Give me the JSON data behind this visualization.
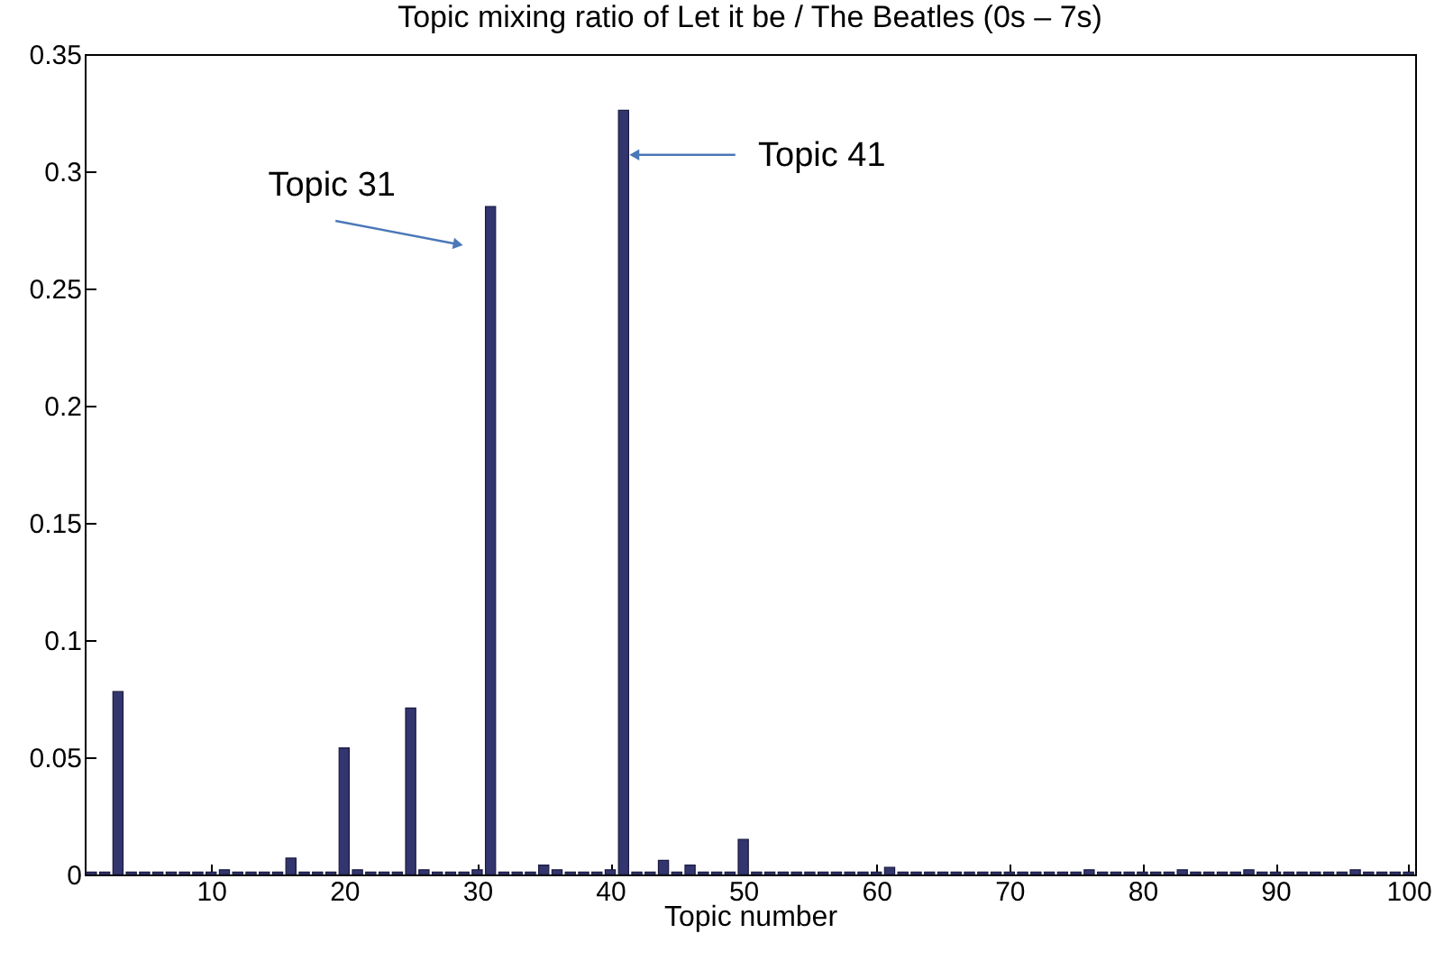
{
  "chart_data": {
    "type": "bar",
    "title": "Topic mixing ratio of Let it be / The Beatles (0s – 7s)",
    "xlabel": "Topic number",
    "x": [
      1,
      2,
      3,
      4,
      5,
      6,
      7,
      8,
      9,
      10,
      11,
      12,
      13,
      14,
      15,
      16,
      17,
      18,
      19,
      20,
      21,
      22,
      23,
      24,
      25,
      26,
      27,
      28,
      29,
      30,
      31,
      32,
      33,
      34,
      35,
      36,
      37,
      38,
      39,
      40,
      41,
      42,
      43,
      44,
      45,
      46,
      47,
      48,
      49,
      50,
      51,
      52,
      53,
      54,
      55,
      56,
      57,
      58,
      59,
      60,
      61,
      62,
      63,
      64,
      65,
      66,
      67,
      68,
      69,
      70,
      71,
      72,
      73,
      74,
      75,
      76,
      77,
      78,
      79,
      80,
      81,
      82,
      83,
      84,
      85,
      86,
      87,
      88,
      89,
      90,
      91,
      92,
      93,
      94,
      95,
      96,
      97,
      98,
      99,
      100
    ],
    "values": [
      0.001,
      0.001,
      0.078,
      0.001,
      0.001,
      0.001,
      0.001,
      0.001,
      0.001,
      0.001,
      0.002,
      0.001,
      0.001,
      0.001,
      0.001,
      0.007,
      0.001,
      0.001,
      0.001,
      0.054,
      0.002,
      0.001,
      0.001,
      0.001,
      0.071,
      0.002,
      0.001,
      0.001,
      0.001,
      0.002,
      0.285,
      0.001,
      0.001,
      0.001,
      0.004,
      0.002,
      0.001,
      0.001,
      0.001,
      0.002,
      0.326,
      0.001,
      0.001,
      0.006,
      0.001,
      0.004,
      0.001,
      0.001,
      0.001,
      0.015,
      0.001,
      0.001,
      0.001,
      0.001,
      0.001,
      0.001,
      0.001,
      0.001,
      0.001,
      0.001,
      0.003,
      0.001,
      0.001,
      0.001,
      0.001,
      0.001,
      0.001,
      0.001,
      0.001,
      0.001,
      0.001,
      0.001,
      0.001,
      0.001,
      0.001,
      0.002,
      0.001,
      0.001,
      0.001,
      0.001,
      0.001,
      0.001,
      0.002,
      0.001,
      0.001,
      0.001,
      0.001,
      0.002,
      0.001,
      0.001,
      0.001,
      0.001,
      0.001,
      0.001,
      0.001,
      0.002,
      0.001,
      0.001,
      0.001,
      0.001
    ],
    "color": "#33356e",
    "xlim": [
      0.5,
      100.5
    ],
    "xticks": [
      10,
      20,
      30,
      40,
      50,
      60,
      70,
      80,
      90,
      100
    ],
    "ylim": [
      0,
      0.35
    ],
    "yticks": [
      0,
      0.05,
      0.1,
      0.15,
      0.2,
      0.25,
      0.3,
      0.35
    ],
    "annotations": [
      {
        "text": "Topic 31",
        "x": 31,
        "y": 0.285
      },
      {
        "text": "Topic 41",
        "x": 41,
        "y": 0.307
      }
    ]
  }
}
